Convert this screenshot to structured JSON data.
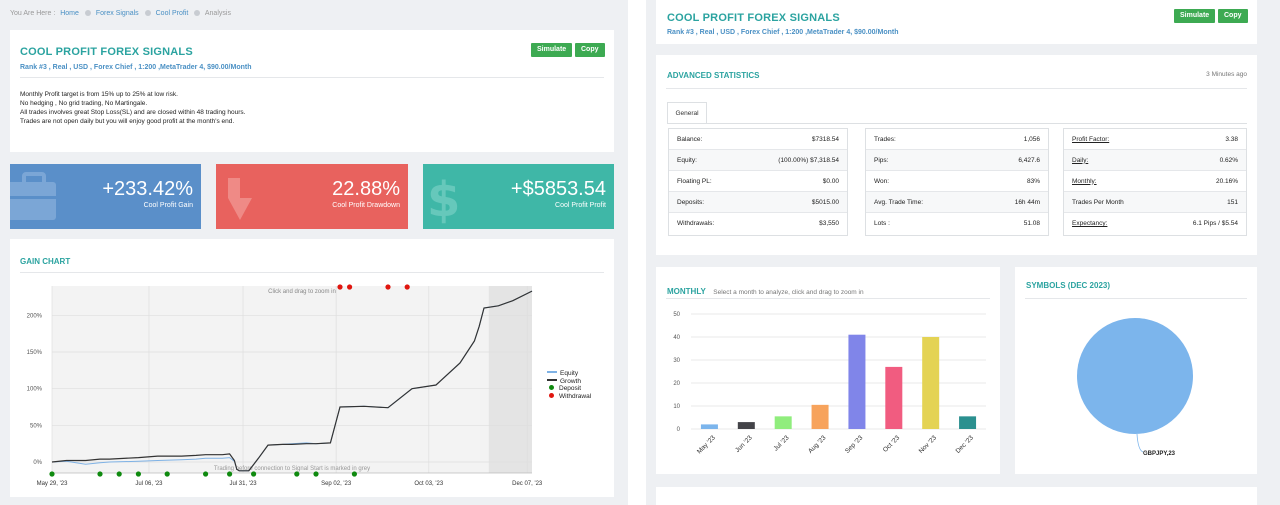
{
  "breadcrumb": {
    "prefix": "You Are Here :",
    "items": [
      "Home",
      "Forex Signals",
      "Cool Profit",
      "Analysis"
    ]
  },
  "signal": {
    "title": "COOL PROFIT FOREX SIGNALS",
    "subtitle": "Rank #3 , Real , USD , Forex Chief , 1:200 ,MetaTrader 4, $90.00/Month",
    "simulate_label": "Simulate",
    "copy_label": "Copy",
    "description": [
      "Monthly Profit target is from 15% up to 25% at low risk.",
      "No hedging , No grid trading, No Martingale.",
      "All trades involves great Stop Loss(SL) and are closed within 48 trading hours.",
      "Trades are not open daily but you will enjoy good profit at the month's end."
    ]
  },
  "tiles": [
    {
      "value": "+233.42%",
      "label": "Cool Profit Gain",
      "color": "#5a8fc9",
      "icon": "briefcase-icon"
    },
    {
      "value": "22.88%",
      "label": "Cool Profit Drawdown",
      "color": "#e8625e",
      "icon": "arrow-down-icon"
    },
    {
      "value": "+$5853.54",
      "label": "Cool Profit Profit",
      "color": "#3fb7a7",
      "icon": "dollar-icon"
    }
  ],
  "gain_chart": {
    "title": "GAIN CHART",
    "zoom_hint": "Click and drag to zoom in",
    "connection_note": "Trading before connection to Signal Start is marked in grey",
    "legend": [
      {
        "name": "Equity",
        "color": "#7fb2e5"
      },
      {
        "name": "Growth",
        "color": "#333333"
      },
      {
        "name": "Deposit",
        "color": "#0f8a0f"
      },
      {
        "name": "Withdrawal",
        "color": "#e0160f"
      }
    ]
  },
  "stats": {
    "title": "ADVANCED STATISTICS",
    "updated": "3 Minutes ago",
    "tab": "General",
    "col1": [
      {
        "k": "Balance:",
        "v": "$7318.54"
      },
      {
        "k": "Equity:",
        "v": "(100.00%) $7,318.54"
      },
      {
        "k": "Floating PL:",
        "v": "$0.00"
      },
      {
        "k": "Deposits:",
        "v": "$5015.00"
      },
      {
        "k": "Withdrawals:",
        "v": "$3,550"
      }
    ],
    "col2": [
      {
        "k": "Trades:",
        "v": "1,056"
      },
      {
        "k": "Pips:",
        "v": "6,427.6"
      },
      {
        "k": "Won:",
        "v": "83%"
      },
      {
        "k": "Avg. Trade Time:",
        "v": "16h 44m"
      },
      {
        "k": "Lots :",
        "v": "51.08"
      }
    ],
    "col3": [
      {
        "k": "Profit Factor:",
        "v": "3.38",
        "u": true
      },
      {
        "k": "Daily:",
        "v": "0.62%",
        "u": true
      },
      {
        "k": "Monthly:",
        "v": "20.16%",
        "u": true
      },
      {
        "k": "Trades Per Month",
        "v": "151",
        "u": false
      },
      {
        "k": "Expectancy:",
        "v": "6.1 Pips / $5.54",
        "u": true
      }
    ]
  },
  "monthly": {
    "title": "MONTHLY",
    "hint": "Select a month to analyze, click and drag to zoom in"
  },
  "symbols": {
    "title": "SYMBOLS (DEC 2023)"
  },
  "chart_data": [
    {
      "type": "line",
      "title": "GAIN CHART",
      "x_ticks": [
        "May 29, '23",
        "Jul 06, '23",
        "Jul 31, '23",
        "Sep 02, '23",
        "Oct 03, '23",
        "Dec 07, '23"
      ],
      "y_ticks": [
        "0%",
        "50%",
        "100%",
        "150%",
        "200%"
      ],
      "ylim": [
        -15,
        240
      ],
      "series": [
        {
          "name": "Equity",
          "x": [
            0,
            3,
            7,
            10,
            12,
            18,
            22,
            27,
            30,
            32,
            34,
            35.5,
            37,
            38,
            38.5,
            39,
            41,
            43,
            45,
            48,
            50,
            53,
            55,
            58,
            60,
            65,
            70,
            75,
            80,
            85,
            88,
            89,
            90,
            93,
            96,
            100
          ],
          "y": [
            0,
            1,
            -3,
            -1,
            0,
            1,
            2,
            3,
            4,
            5,
            5,
            5,
            6,
            1,
            -10,
            -12,
            -12,
            5,
            23,
            24,
            25,
            26,
            25,
            26,
            75,
            76,
            74,
            100,
            105,
            135,
            165,
            185,
            210,
            213,
            220,
            233
          ]
        },
        {
          "name": "Growth",
          "x": [
            0,
            3,
            7,
            10,
            12,
            18,
            22,
            27,
            30,
            32,
            34,
            35.5,
            37,
            38,
            38.5,
            39,
            41,
            43,
            45,
            48,
            50,
            53,
            55,
            58,
            60,
            65,
            70,
            75,
            80,
            85,
            88,
            89,
            90,
            93,
            96,
            100
          ],
          "y": [
            0,
            2,
            2,
            4,
            4,
            6,
            8,
            8,
            9,
            10,
            10,
            10,
            11,
            2,
            -10,
            -12,
            -12,
            5,
            23,
            24,
            24,
            25,
            25,
            26,
            75,
            76,
            74,
            100,
            105,
            135,
            165,
            185,
            210,
            213,
            220,
            233
          ]
        }
      ],
      "deposit_x": [
        0,
        10,
        14,
        18,
        24,
        32,
        37,
        42,
        51,
        55,
        63
      ],
      "withdrawal_x": [
        60,
        62,
        70,
        74
      ]
    },
    {
      "type": "bar",
      "title": "MONTHLY",
      "categories": [
        "May '23",
        "Jun '23",
        "Jul '23",
        "Aug '23",
        "Sep '23",
        "Oct '23",
        "Nov '23",
        "Dec '23"
      ],
      "values": [
        2,
        3,
        5.5,
        10.5,
        41,
        27,
        40,
        5.5
      ],
      "colors": [
        "#7cb5ec",
        "#434348",
        "#90ed7d",
        "#f7a35c",
        "#8085e9",
        "#f15c80",
        "#e4d354",
        "#2b908f"
      ],
      "y_ticks": [
        0,
        10,
        20,
        30,
        40,
        50
      ],
      "ylim": [
        0,
        50
      ]
    },
    {
      "type": "pie",
      "title": "SYMBOLS (DEC 2023)",
      "slices": [
        {
          "label": "GBPJPY,23",
          "value": 100,
          "color": "#7cb5ec"
        }
      ]
    }
  ]
}
